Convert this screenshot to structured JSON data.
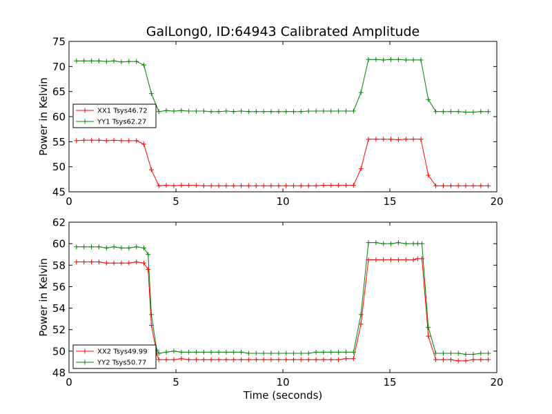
{
  "chart_data": [
    {
      "type": "line",
      "title": "GalLong0, ID:64943 Calibrated Amplitude",
      "xlabel": "",
      "ylabel": "Power in Kelvin",
      "xlim": [
        0,
        20
      ],
      "ylim": [
        45,
        75
      ],
      "xticks": [
        0,
        5,
        10,
        15,
        20
      ],
      "yticks": [
        45,
        50,
        55,
        60,
        65,
        70,
        75
      ],
      "xtick_labels": [
        "0",
        "5",
        "10",
        "15",
        "20"
      ],
      "ytick_labels": [
        "45",
        "50",
        "55",
        "60",
        "65",
        "70",
        "75"
      ],
      "grid": false,
      "legend_position": "center-left",
      "series": [
        {
          "name": "XX1 Tsys46.72",
          "color": "#ff0000",
          "marker": "+",
          "x": [
            0.35,
            0.7,
            1.05,
            1.4,
            1.75,
            2.1,
            2.45,
            2.8,
            3.15,
            3.5,
            3.85,
            4.2,
            4.55,
            4.9,
            5.25,
            5.6,
            5.95,
            6.3,
            6.65,
            7.0,
            7.35,
            7.7,
            8.05,
            8.4,
            8.75,
            9.1,
            9.45,
            9.8,
            10.15,
            10.5,
            10.85,
            11.2,
            11.55,
            11.9,
            12.25,
            12.6,
            12.95,
            13.3,
            13.65,
            14.0,
            14.35,
            14.7,
            15.05,
            15.4,
            15.75,
            16.1,
            16.45,
            16.8,
            17.15,
            17.5,
            17.85,
            18.2,
            18.55,
            18.9,
            19.25,
            19.6
          ],
          "y": [
            55.2,
            55.3,
            55.3,
            55.3,
            55.2,
            55.3,
            55.2,
            55.2,
            55.2,
            54.5,
            49.4,
            46.2,
            46.3,
            46.2,
            46.3,
            46.3,
            46.3,
            46.2,
            46.2,
            46.2,
            46.2,
            46.2,
            46.2,
            46.2,
            46.2,
            46.2,
            46.2,
            46.2,
            46.2,
            46.2,
            46.2,
            46.2,
            46.2,
            46.3,
            46.3,
            46.3,
            46.3,
            46.3,
            49.6,
            55.5,
            55.5,
            55.5,
            55.5,
            55.4,
            55.5,
            55.5,
            55.5,
            48.3,
            46.2,
            46.2,
            46.2,
            46.2,
            46.2,
            46.2,
            46.2,
            46.2
          ]
        },
        {
          "name": "YY1 Tsys62.27",
          "color": "#008000",
          "marker": "+",
          "x": [
            0.35,
            0.7,
            1.05,
            1.4,
            1.75,
            2.1,
            2.45,
            2.8,
            3.15,
            3.5,
            3.85,
            4.2,
            4.55,
            4.9,
            5.25,
            5.6,
            5.95,
            6.3,
            6.65,
            7.0,
            7.35,
            7.7,
            8.05,
            8.4,
            8.75,
            9.1,
            9.45,
            9.8,
            10.15,
            10.5,
            10.85,
            11.2,
            11.55,
            11.9,
            12.25,
            12.6,
            12.95,
            13.3,
            13.65,
            14.0,
            14.35,
            14.7,
            15.05,
            15.4,
            15.75,
            16.1,
            16.45,
            16.8,
            17.15,
            17.5,
            17.85,
            18.2,
            18.55,
            18.9,
            19.25,
            19.6
          ],
          "y": [
            71.1,
            71.1,
            71.1,
            71.1,
            71.0,
            71.1,
            70.9,
            71.0,
            71.0,
            70.3,
            64.6,
            61.0,
            61.2,
            61.1,
            61.2,
            61.1,
            61.1,
            61.1,
            61.0,
            61.0,
            61.1,
            61.0,
            61.1,
            61.0,
            61.0,
            61.0,
            61.0,
            61.0,
            61.0,
            61.0,
            61.0,
            61.1,
            61.1,
            61.1,
            61.1,
            61.1,
            61.1,
            61.1,
            64.8,
            71.4,
            71.4,
            71.3,
            71.4,
            71.4,
            71.3,
            71.3,
            71.3,
            63.4,
            61.0,
            61.0,
            61.0,
            61.0,
            60.9,
            60.9,
            61.0,
            61.0
          ]
        }
      ]
    },
    {
      "type": "line",
      "title": "",
      "xlabel": "Time (seconds)",
      "ylabel": "Power in Kelvin",
      "xlim": [
        0,
        20
      ],
      "ylim": [
        48,
        62
      ],
      "xticks": [
        0,
        5,
        10,
        15,
        20
      ],
      "yticks": [
        48,
        50,
        52,
        54,
        56,
        58,
        60,
        62
      ],
      "xtick_labels": [
        "0",
        "5",
        "10",
        "15",
        "20"
      ],
      "ytick_labels": [
        "48",
        "50",
        "52",
        "54",
        "56",
        "58",
        "60",
        "62"
      ],
      "grid": false,
      "legend_position": "lower-left",
      "series": [
        {
          "name": "XX2 Tsys49.99",
          "color": "#ff0000",
          "marker": "+",
          "x": [
            0.35,
            0.7,
            1.05,
            1.4,
            1.75,
            2.1,
            2.45,
            2.8,
            3.15,
            3.5,
            3.7,
            3.85,
            4.1,
            4.2,
            4.55,
            4.9,
            5.25,
            5.6,
            5.95,
            6.3,
            6.65,
            7.0,
            7.35,
            7.7,
            8.05,
            8.4,
            8.75,
            9.1,
            9.45,
            9.8,
            10.15,
            10.5,
            10.85,
            11.2,
            11.55,
            11.9,
            12.25,
            12.6,
            12.95,
            13.3,
            13.65,
            14.0,
            14.35,
            14.7,
            15.05,
            15.4,
            15.75,
            16.1,
            16.3,
            16.5,
            16.8,
            17.15,
            17.5,
            17.85,
            18.2,
            18.55,
            18.9,
            19.25,
            19.6
          ],
          "y": [
            58.3,
            58.3,
            58.3,
            58.3,
            58.2,
            58.2,
            58.2,
            58.2,
            58.3,
            58.2,
            57.6,
            52.4,
            49.8,
            49.2,
            49.2,
            49.2,
            49.3,
            49.2,
            49.2,
            49.2,
            49.2,
            49.2,
            49.2,
            49.2,
            49.2,
            49.2,
            49.2,
            49.2,
            49.2,
            49.2,
            49.2,
            49.2,
            49.2,
            49.2,
            49.2,
            49.2,
            49.2,
            49.2,
            49.3,
            49.3,
            52.5,
            58.5,
            58.5,
            58.5,
            58.5,
            58.5,
            58.5,
            58.5,
            58.6,
            58.6,
            51.4,
            49.2,
            49.2,
            49.2,
            49.1,
            49.1,
            49.2,
            49.2,
            49.2
          ]
        },
        {
          "name": "YY2 Tsys50.77",
          "color": "#008000",
          "marker": "+",
          "x": [
            0.35,
            0.7,
            1.05,
            1.4,
            1.75,
            2.1,
            2.45,
            2.8,
            3.15,
            3.5,
            3.7,
            3.85,
            4.1,
            4.2,
            4.55,
            4.9,
            5.25,
            5.6,
            5.95,
            6.3,
            6.65,
            7.0,
            7.35,
            7.7,
            8.05,
            8.4,
            8.75,
            9.1,
            9.45,
            9.8,
            10.15,
            10.5,
            10.85,
            11.2,
            11.55,
            11.9,
            12.25,
            12.6,
            12.95,
            13.3,
            13.65,
            14.0,
            14.35,
            14.7,
            15.05,
            15.4,
            15.75,
            16.1,
            16.3,
            16.5,
            16.8,
            17.15,
            17.5,
            17.85,
            18.2,
            18.55,
            18.9,
            19.25,
            19.6
          ],
          "y": [
            59.7,
            59.7,
            59.7,
            59.7,
            59.6,
            59.7,
            59.6,
            59.6,
            59.7,
            59.6,
            59.0,
            53.4,
            50.1,
            49.8,
            49.9,
            50.0,
            49.9,
            49.9,
            49.9,
            49.9,
            49.9,
            49.9,
            49.9,
            49.9,
            49.9,
            49.8,
            49.8,
            49.8,
            49.8,
            49.8,
            49.8,
            49.8,
            49.8,
            49.8,
            49.9,
            49.9,
            49.9,
            49.9,
            49.9,
            49.9,
            53.4,
            60.1,
            60.1,
            60.0,
            60.0,
            60.1,
            60.0,
            60.0,
            60.0,
            60.0,
            52.2,
            49.8,
            49.8,
            49.8,
            49.8,
            49.7,
            49.7,
            49.8,
            49.8
          ]
        }
      ]
    }
  ]
}
